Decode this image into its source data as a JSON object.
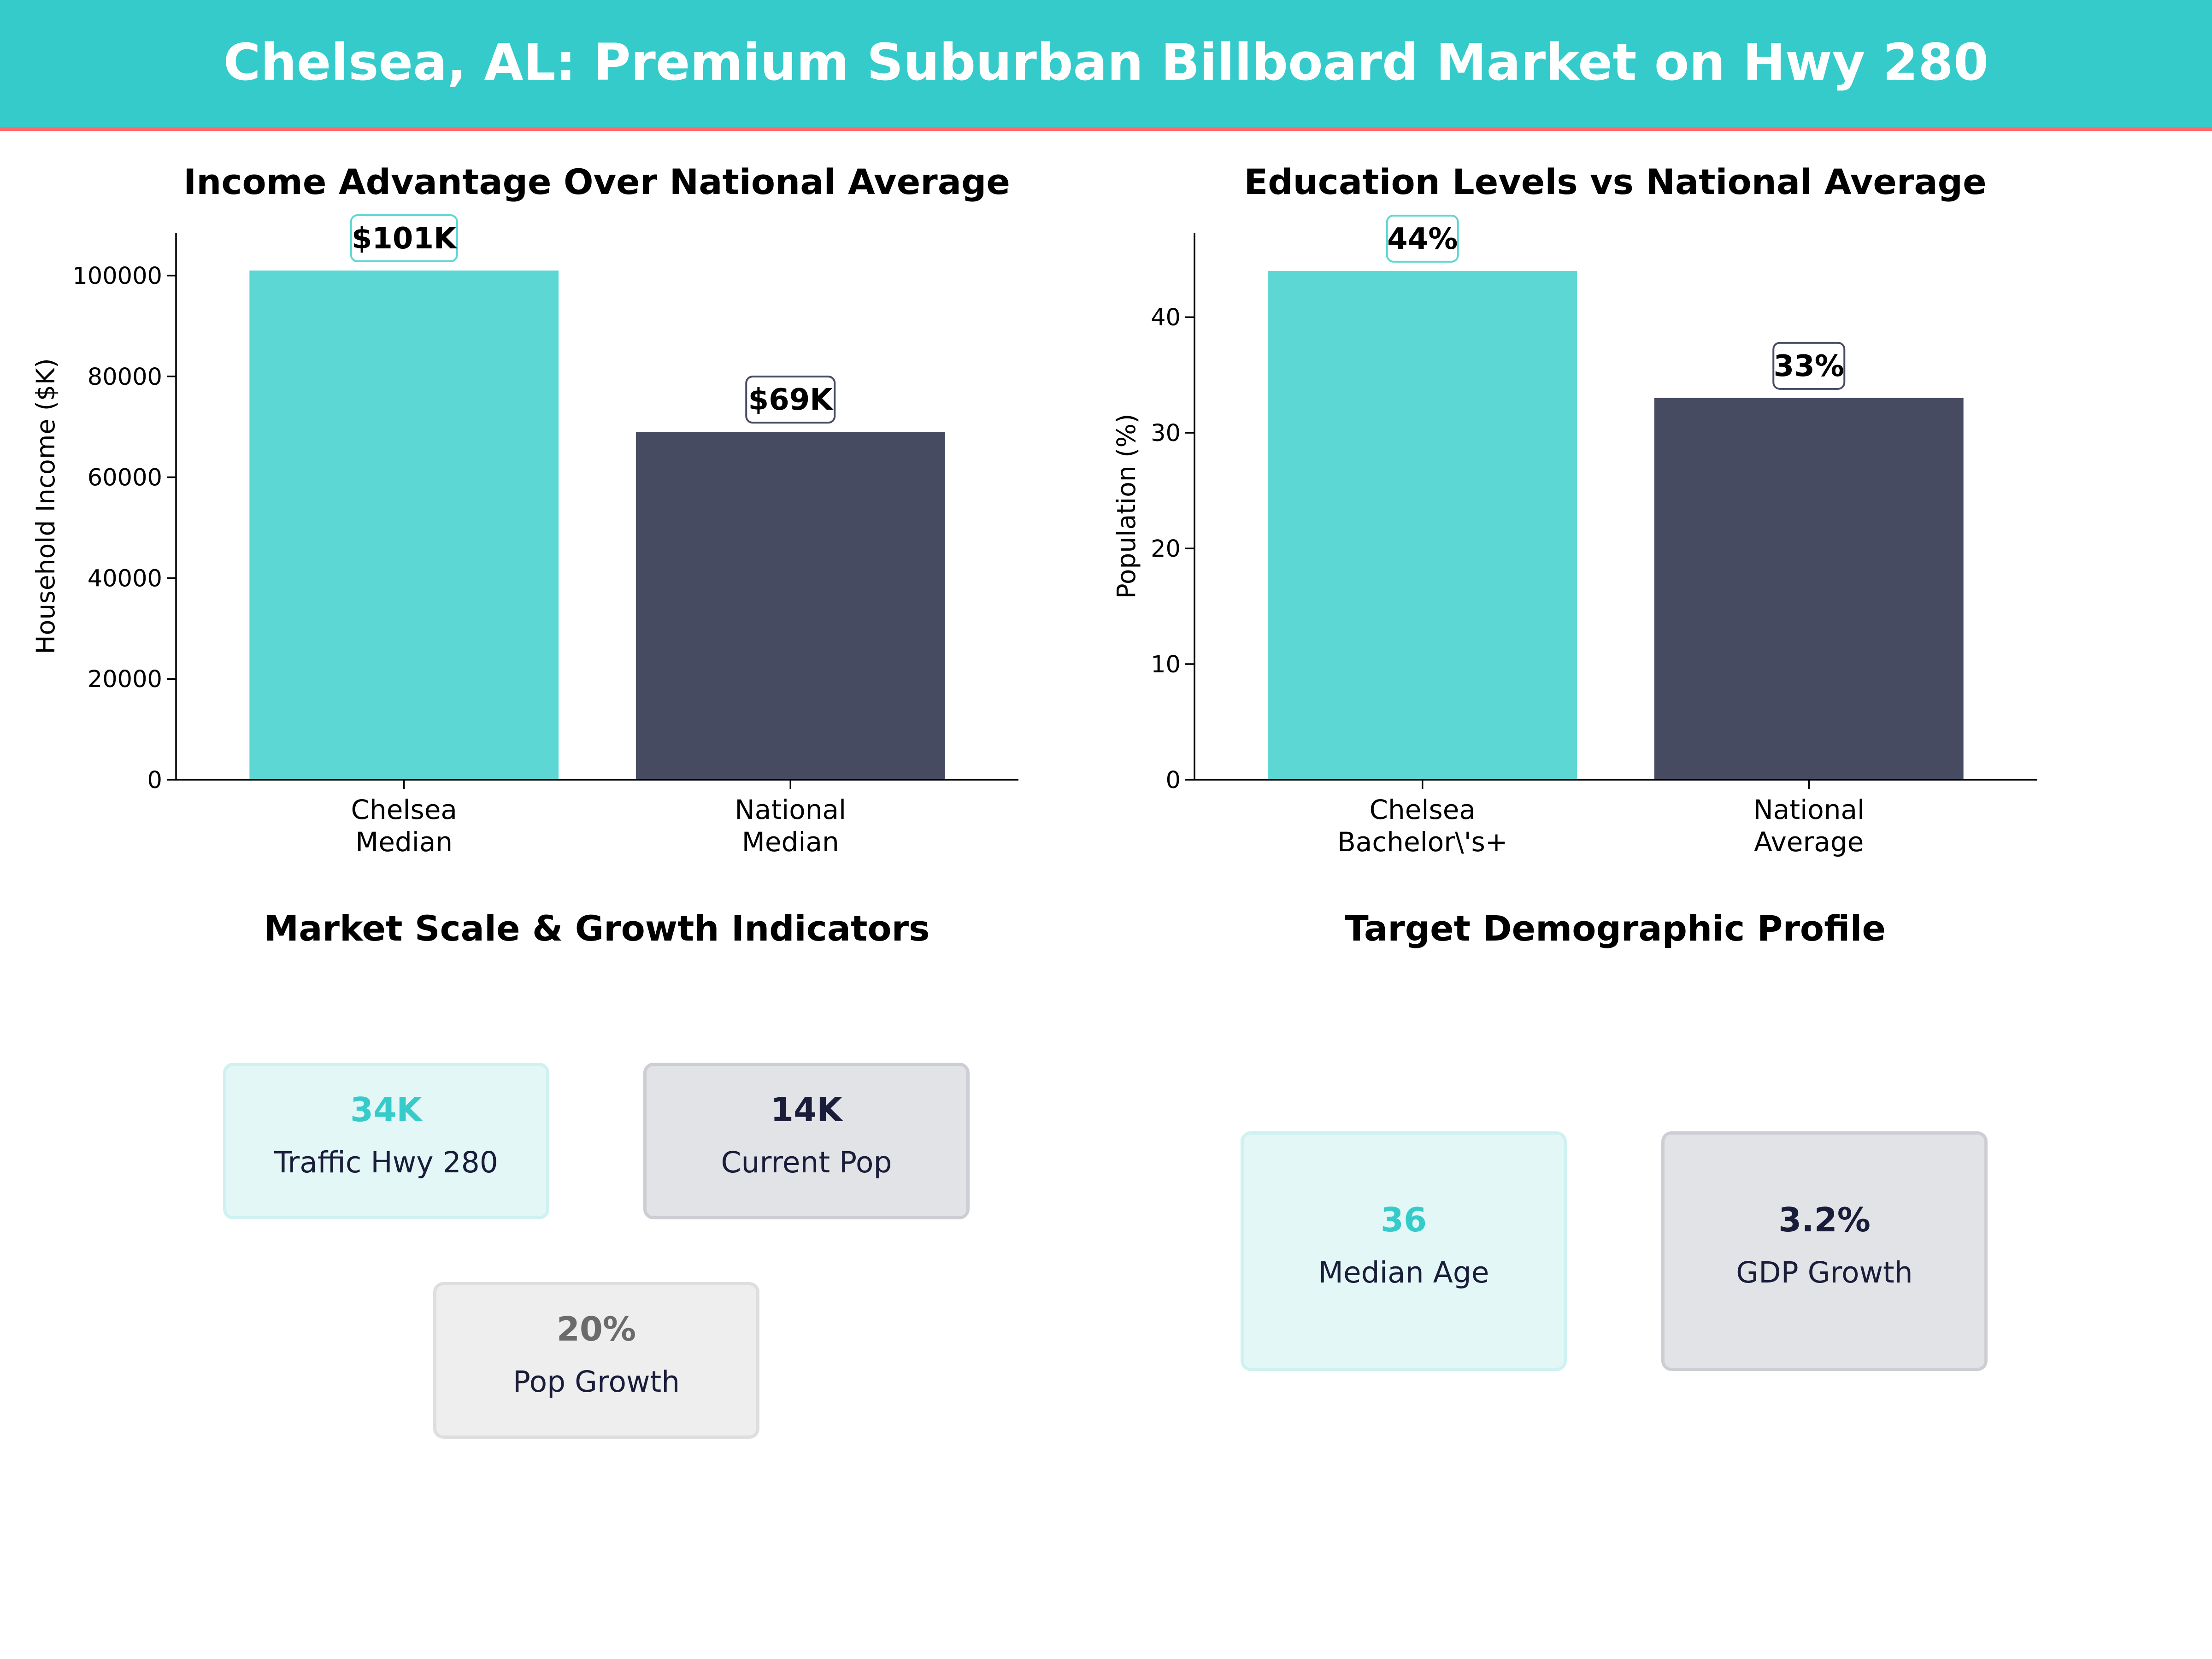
{
  "header": {
    "title": "Chelsea, AL: Premium Suburban Billboard Market on Hwy 280"
  },
  "colors": {
    "accent": "#36cbcb",
    "header_underline": "#ff6b6b",
    "teal_bar": "#5cd7d4",
    "dark_bar": "#474b61",
    "navy_text": "#1a1d3a",
    "gray_text": "#6b6b6b"
  },
  "chart_data": [
    {
      "type": "bar",
      "title": "Income Advantage Over National Average",
      "ylabel": "Household Income ($K)",
      "categories": [
        "Chelsea\nMedian",
        "National\nMedian"
      ],
      "values": [
        101000,
        69000
      ],
      "data_labels": [
        "$101K",
        "$69K"
      ],
      "colors": [
        "#5cd7d4",
        "#474b61"
      ],
      "ylim": [
        0,
        108500
      ],
      "yticks": [
        0,
        20000,
        40000,
        60000,
        80000,
        100000
      ],
      "grid": false
    },
    {
      "type": "bar",
      "title": "Education Levels vs National Average",
      "ylabel": "Population (%)",
      "categories": [
        "Chelsea\nBachelor\\'s+",
        "National\nAverage"
      ],
      "values": [
        44,
        33
      ],
      "data_labels": [
        "44%",
        "33%"
      ],
      "colors": [
        "#5cd7d4",
        "#474b61"
      ],
      "ylim": [
        0,
        47.3
      ],
      "yticks": [
        0,
        10,
        20,
        30,
        40
      ],
      "grid": false
    }
  ],
  "market_scale": {
    "title": "Market Scale & Growth Indicators",
    "cards": [
      {
        "value": "34K",
        "label": "Traffic Hwy 280"
      },
      {
        "value": "14K",
        "label": "Current Pop"
      },
      {
        "value": "20%",
        "label": "Pop Growth"
      }
    ]
  },
  "demographics": {
    "title": "Target Demographic Profile",
    "cards": [
      {
        "value": "36",
        "label": "Median Age"
      },
      {
        "value": "3.2%",
        "label": "GDP Growth"
      }
    ]
  }
}
